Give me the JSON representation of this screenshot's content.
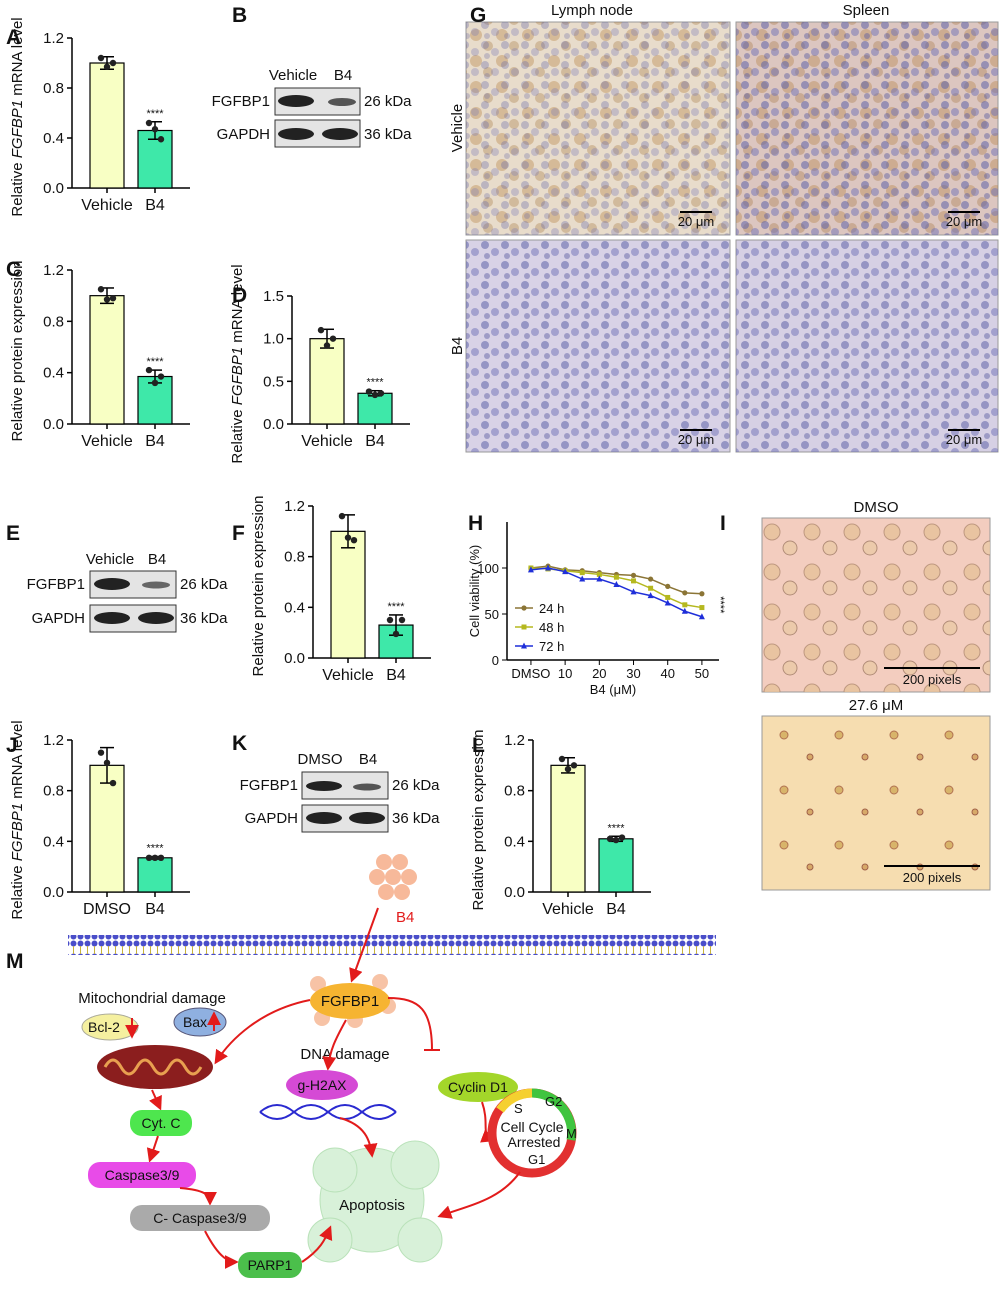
{
  "panel_labels": [
    "A",
    "B",
    "C",
    "D",
    "E",
    "F",
    "G",
    "H",
    "I",
    "J",
    "K",
    "L",
    "M"
  ],
  "chart_data": [
    {
      "type": "bar",
      "y_label_parts": [
        "Relative ",
        "FGFBP1",
        " mRNA level"
      ],
      "categories": [
        "Vehicle",
        "B4"
      ],
      "values": [
        1.0,
        0.46
      ],
      "errors": [
        0.05,
        0.07
      ],
      "points": [
        [
          1.04,
          0.97,
          1.0
        ],
        [
          0.52,
          0.47,
          0.39
        ]
      ],
      "colors": [
        "#f8ffc4",
        "#3ee8a9"
      ],
      "annotation": "****",
      "ylim": [
        0,
        1.2
      ],
      "yticks": [
        {
          "value": 0,
          "label": "0.0"
        },
        0.4,
        0.8,
        1.2
      ]
    },
    {
      "type": "bar",
      "y_label_parts": [
        "Relative protein expression"
      ],
      "categories": [
        "Vehicle",
        "B4"
      ],
      "values": [
        1.0,
        0.37
      ],
      "errors": [
        0.06,
        0.05
      ],
      "points": [
        [
          1.05,
          0.97,
          0.98
        ],
        [
          0.42,
          0.32,
          0.37
        ]
      ],
      "colors": [
        "#f8ffc4",
        "#3ee8a9"
      ],
      "annotation": "****",
      "ylim": [
        0,
        1.2
      ],
      "yticks": [
        {
          "value": 0,
          "label": "0.0"
        },
        0.4,
        0.8,
        1.2
      ]
    },
    {
      "type": "bar",
      "y_label_parts": [
        "Relative ",
        "FGFBP1",
        " mRNA level"
      ],
      "categories": [
        "Vehicle",
        "B4"
      ],
      "values": [
        1.0,
        0.36
      ],
      "errors": [
        0.11,
        0.03
      ],
      "points": [
        [
          1.1,
          0.92,
          1.0
        ],
        [
          0.38,
          0.34,
          0.36
        ]
      ],
      "colors": [
        "#f8ffc4",
        "#3ee8a9"
      ],
      "annotation": "****",
      "ylim": [
        0,
        1.5
      ],
      "yticks": [
        {
          "value": 0,
          "label": "0.0"
        },
        0.5,
        {
          "value": 1,
          "label": "1.0"
        },
        1.5
      ]
    },
    {
      "type": "bar",
      "y_label_parts": [
        "Relative protein expression"
      ],
      "categories": [
        "Vehicle",
        "B4"
      ],
      "values": [
        1.0,
        0.26
      ],
      "errors": [
        0.13,
        0.08
      ],
      "points": [
        [
          1.12,
          0.95,
          0.93
        ],
        [
          0.3,
          0.19,
          0.3
        ]
      ],
      "colors": [
        "#f8ffc4",
        "#3ee8a9"
      ],
      "annotation": "****",
      "ylim": [
        0,
        1.2
      ],
      "yticks": [
        {
          "value": 0,
          "label": "0.0"
        },
        0.4,
        0.8,
        1.2
      ]
    },
    {
      "type": "line",
      "x_label": "B4 (μM)",
      "y_label": "Cell viability (%)",
      "x": [
        0,
        5,
        10,
        15,
        20,
        25,
        30,
        35,
        40,
        45,
        50
      ],
      "series": [
        {
          "name": "24 h",
          "color": "#8b7536",
          "marker": "circle",
          "values": [
            100,
            102,
            98,
            97,
            95,
            93,
            92,
            88,
            80,
            73,
            72
          ]
        },
        {
          "name": "48 h",
          "color": "#b5b81f",
          "marker": "square",
          "values": [
            100,
            99,
            97,
            95,
            93,
            90,
            86,
            78,
            68,
            60,
            57
          ]
        },
        {
          "name": "72 h",
          "color": "#1f2fd9",
          "marker": "triangle",
          "values": [
            98,
            100,
            96,
            88,
            88,
            82,
            74,
            70,
            62,
            53,
            47
          ]
        }
      ],
      "annotation": "****",
      "xlim": [
        -7,
        55
      ],
      "xticks": [
        {
          "value": 0,
          "label": "DMSO"
        },
        10,
        20,
        30,
        40,
        50
      ],
      "ylim": [
        0,
        150
      ],
      "yticks": [
        0,
        50,
        100
      ]
    },
    {
      "type": "bar",
      "y_label_parts": [
        "Relative ",
        "FGFBP1",
        " mRNA level"
      ],
      "categories": [
        "DMSO",
        "B4"
      ],
      "values": [
        1.0,
        0.27
      ],
      "errors": [
        0.14,
        0.01
      ],
      "points": [
        [
          1.1,
          1.02,
          0.86
        ],
        [
          0.27,
          0.27,
          0.27
        ]
      ],
      "colors": [
        "#f8ffc4",
        "#3ee8a9"
      ],
      "annotation": "****",
      "ylim": [
        0,
        1.2
      ],
      "yticks": [
        {
          "value": 0,
          "label": "0.0"
        },
        0.4,
        0.8,
        1.2
      ]
    },
    {
      "type": "bar",
      "y_label_parts": [
        "Relative protein expression"
      ],
      "categories": [
        "Vehicle",
        "B4"
      ],
      "values": [
        1.0,
        0.42
      ],
      "errors": [
        0.06,
        0.02
      ],
      "points": [
        [
          1.05,
          0.97,
          1.0
        ],
        [
          0.42,
          0.41,
          0.43
        ]
      ],
      "colors": [
        "#f8ffc4",
        "#3ee8a9"
      ],
      "annotation": "****",
      "ylim": [
        0,
        1.2
      ],
      "yticks": [
        {
          "value": 0,
          "label": "0.0"
        },
        0.4,
        0.8,
        1.2
      ]
    }
  ],
  "blots": [
    {
      "lanes": [
        "Vehicle",
        "B4"
      ],
      "rows": [
        "FGFBP1",
        "GAPDH"
      ],
      "sizes": [
        "26 kDa",
        "36 kDa"
      ]
    },
    {
      "lanes": [
        "Vehicle",
        "B4"
      ],
      "rows": [
        "FGFBP1",
        "GAPDH"
      ],
      "sizes": [
        "26 kDa",
        "36 kDa"
      ]
    },
    {
      "lanes": [
        "DMSO",
        "B4"
      ],
      "rows": [
        "FGFBP1",
        "GAPDH"
      ],
      "sizes": [
        "26 kDa",
        "36 kDa"
      ]
    }
  ],
  "micrographs": {
    "columns": [
      "Lymph node",
      "Spleen"
    ],
    "rows": [
      "Vehicle",
      "B4"
    ],
    "scale_bar": "20 μm"
  },
  "cell_images": {
    "labels": [
      "DMSO",
      "27.6 μM"
    ],
    "scale_bar": "200 pixels"
  },
  "diagram": {
    "nodes": [
      "B4",
      "FGFBP1",
      "Mitochondrial damage",
      "Bcl-2",
      "Bax",
      "DNA damage",
      "g-H2AX",
      "Cyclin D1",
      "Cyt. C",
      "Caspase3/9",
      "C- Caspase3/9",
      "PARP1",
      "Apoptosis",
      "Cell Cycle",
      "Arrested",
      "S",
      "G2",
      "M",
      "G1"
    ]
  }
}
